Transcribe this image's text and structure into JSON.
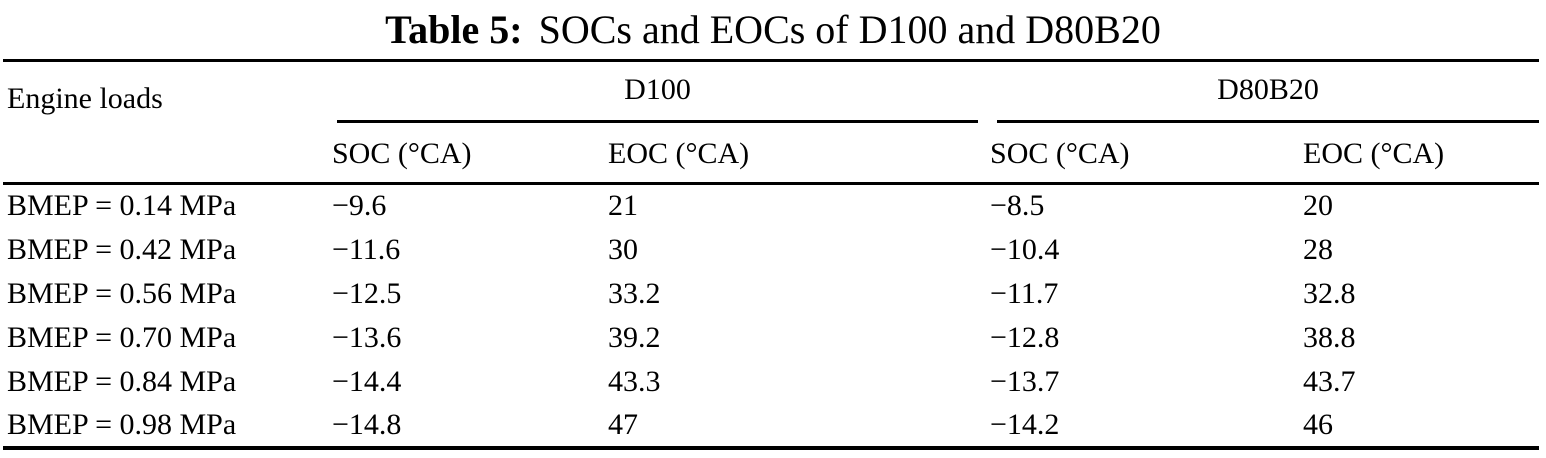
{
  "caption": {
    "label": "Table 5:",
    "text": "SOCs and EOCs of D100 and D80B20"
  },
  "table": {
    "corner_header": "Engine loads",
    "groups": [
      {
        "label": "D100",
        "columns": [
          "SOC (°CA)",
          "EOC (°CA)"
        ]
      },
      {
        "label": "D80B20",
        "columns": [
          "SOC (°CA)",
          "EOC (°CA)"
        ]
      }
    ],
    "rows": [
      {
        "load": "BMEP = 0.14 MPa",
        "cells": [
          "−9.6",
          "21",
          "−8.5",
          "20"
        ]
      },
      {
        "load": "BMEP = 0.42 MPa",
        "cells": [
          "−11.6",
          "30",
          "−10.4",
          "28"
        ]
      },
      {
        "load": "BMEP = 0.56 MPa",
        "cells": [
          "−12.5",
          "33.2",
          "−11.7",
          "32.8"
        ]
      },
      {
        "load": "BMEP = 0.70 MPa",
        "cells": [
          "−13.6",
          "39.2",
          "−12.8",
          "38.8"
        ]
      },
      {
        "load": "BMEP = 0.84 MPa",
        "cells": [
          "−14.4",
          "43.3",
          "−13.7",
          "43.7"
        ]
      },
      {
        "load": "BMEP = 0.98 MPa",
        "cells": [
          "−14.8",
          "47",
          "−14.2",
          "46"
        ]
      }
    ]
  },
  "colors": {
    "text": "#000000",
    "background": "#ffffff",
    "rule": "#000000"
  }
}
